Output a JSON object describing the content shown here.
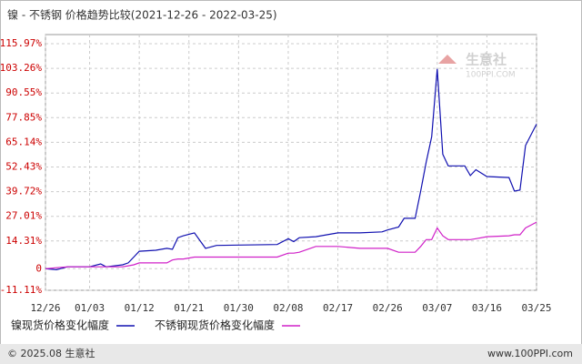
{
  "chart_data": {
    "type": "line",
    "title": "镍 - 不锈钢 价格趋势比较(2021-12-26 - 2022-03-25)",
    "x": [
      "12/26",
      "12/28",
      "12/30",
      "01/03",
      "01/05",
      "01/06",
      "01/09",
      "01/10",
      "01/11",
      "01/12",
      "01/15",
      "01/17",
      "01/18",
      "01/19",
      "01/20",
      "01/22",
      "01/24",
      "01/26",
      "02/06",
      "02/08",
      "02/09",
      "02/10",
      "02/13",
      "02/15",
      "02/17",
      "02/21",
      "02/25",
      "02/26",
      "02/28",
      "03/01",
      "03/03",
      "03/04",
      "03/05",
      "03/06",
      "03/07",
      "03/08",
      "03/09",
      "03/12",
      "03/13",
      "03/14",
      "03/16",
      "03/20",
      "03/21",
      "03/22",
      "03/23",
      "03/25"
    ],
    "series": [
      {
        "name": "镍现货价格变化幅度",
        "color": "#1010b0",
        "values": [
          0,
          -0.5,
          1,
          1,
          2.5,
          1,
          2,
          3,
          6,
          9,
          9.5,
          10.5,
          10,
          16,
          17,
          18.5,
          10.5,
          12,
          12.5,
          15.5,
          14,
          16,
          16.5,
          17.5,
          18.5,
          18.5,
          19,
          20,
          21.5,
          26,
          26,
          40,
          55,
          68,
          103,
          59,
          53,
          53,
          48,
          51,
          47.5,
          47,
          40,
          40.5,
          63.5,
          74.5
        ]
      },
      {
        "name": "不锈钢现货价格变化幅度",
        "color": "#d020c8",
        "values": [
          0,
          0.5,
          1,
          1,
          1,
          1,
          1,
          1.5,
          2,
          3,
          3,
          3,
          4.5,
          5,
          5,
          6,
          6,
          6,
          6,
          8,
          8,
          8.5,
          11.5,
          11.5,
          11.5,
          10.5,
          10.5,
          10.5,
          8.5,
          8.5,
          8.5,
          11.5,
          15,
          15,
          21,
          17,
          15,
          15,
          15,
          15.5,
          16.5,
          17,
          17.5,
          17.5,
          21,
          24
        ]
      }
    ],
    "xticks": [
      "12/26",
      "01/03",
      "01/12",
      "01/21",
      "01/30",
      "02/08",
      "02/17",
      "02/26",
      "03/07",
      "03/16",
      "03/25"
    ],
    "ylim": [
      -11.11,
      115.97
    ],
    "yticks": [
      {
        "value": -11.11,
        "label": "-11.11%"
      },
      0,
      {
        "value": 14.31,
        "label": "14.31%"
      },
      {
        "value": 27.01,
        "label": "27.01%"
      },
      {
        "value": 39.72,
        "label": "39.72%"
      },
      {
        "value": 52.43,
        "label": "52.43%"
      },
      {
        "value": 65.14,
        "label": "65.14%"
      },
      {
        "value": 77.85,
        "label": "77.85%"
      },
      {
        "value": 90.55,
        "label": "90.55%"
      },
      {
        "value": 103.26,
        "label": "103.26%"
      },
      {
        "value": 115.97,
        "label": "115.97%"
      }
    ],
    "grid": true,
    "watermark": [
      "生意社",
      "100PPI.COM"
    ],
    "footer_left": "© 2025.08 生意社",
    "footer_right": "www.100PPI.com"
  }
}
